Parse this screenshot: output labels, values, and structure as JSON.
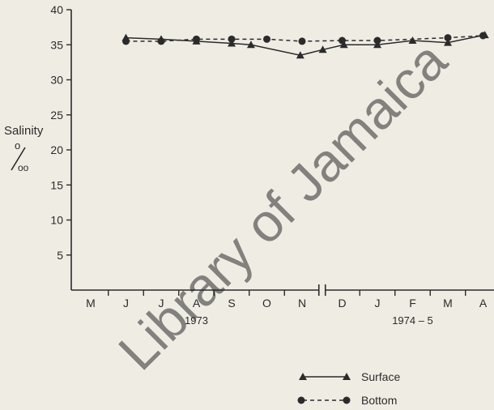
{
  "chart_data": {
    "type": "line",
    "ylabel": "Salinity",
    "yunit": "%o",
    "ylim": [
      0,
      40
    ],
    "yticks": [
      5,
      10,
      15,
      20,
      25,
      30,
      35,
      40
    ],
    "categories": [
      "M",
      "J",
      "J",
      "A",
      "S",
      "O",
      "N",
      "D",
      "J",
      "F",
      "M",
      "A"
    ],
    "year_labels": [
      {
        "label": "1973",
        "from_index": 0,
        "to_index": 6
      },
      {
        "label": "1974 – 5",
        "from_index": 7,
        "to_index": 11
      }
    ],
    "axis_break_after_index": 6,
    "series": [
      {
        "name": "Surface",
        "marker": "triangle",
        "line": "solid",
        "x": [
          "J",
          "J",
          "A",
          "S",
          "S",
          "N",
          "N",
          "D",
          "J",
          "F",
          "M",
          "A"
        ],
        "x_index": [
          1,
          2,
          3,
          4,
          4.55,
          5.95,
          6.45,
          7.05,
          8.0,
          9.0,
          10.0,
          11.05
        ],
        "values": [
          36.0,
          35.8,
          35.5,
          35.2,
          35.0,
          33.5,
          34.3,
          35.0,
          35.0,
          35.6,
          35.3,
          36.4
        ]
      },
      {
        "name": "Bottom",
        "marker": "circle",
        "line": "dashed",
        "x": [
          "J",
          "J",
          "A",
          "S",
          "O",
          "N",
          "D",
          "J",
          "M",
          "A"
        ],
        "x_index": [
          1,
          2,
          3,
          4,
          5,
          6,
          7,
          8,
          10,
          11
        ],
        "values": [
          35.5,
          35.5,
          35.8,
          35.8,
          35.8,
          35.5,
          35.6,
          35.6,
          36.0,
          36.3
        ]
      }
    ],
    "legend_placement": "bottom-right",
    "grid": false
  },
  "watermark": "Library of Jamaica"
}
